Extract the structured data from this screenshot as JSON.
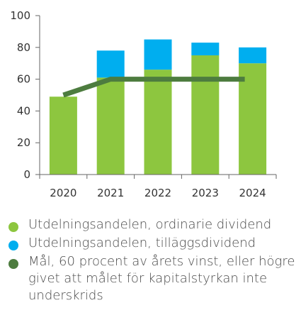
{
  "chart_data": {
    "type": "bar",
    "stacked": true,
    "categories": [
      "2020",
      "2021",
      "2022",
      "2023",
      "2024"
    ],
    "series": [
      {
        "name": "Utdelningsandelen, ordinarie dividend",
        "type": "bar",
        "color": "#8dc63f",
        "values": [
          49,
          61,
          66,
          75,
          70
        ]
      },
      {
        "name": "Utdelningsandelen, tilläggsdividend",
        "type": "bar",
        "color": "#00aeef",
        "values": [
          0,
          17,
          19,
          8,
          10
        ]
      },
      {
        "name": "Mål, 60 procent av årets vinst, eller högre givet att  målet för kapitalstyrkan inte underskrids",
        "type": "line",
        "color": "#4d7c3f",
        "values": [
          50,
          60,
          60,
          60,
          60
        ]
      }
    ],
    "ylim": [
      0,
      100
    ],
    "yticks": [
      0,
      20,
      40,
      60,
      80,
      100
    ],
    "grid": false,
    "legend_position": "bottom"
  },
  "legend": [
    {
      "label": "Utdelningsandelen, ordinarie dividend",
      "color": "#8dc63f"
    },
    {
      "label": "Utdelningsandelen, tilläggsdividend",
      "color": "#00aeef"
    },
    {
      "label": "Mål, 60 procent av årets vinst, eller högre givet att  målet för kapitalstyrkan inte underskrids",
      "color": "#4d7c3f"
    }
  ]
}
